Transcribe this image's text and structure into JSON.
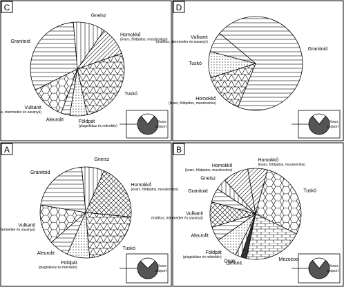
{
  "chart_data": [
    {
      "panel": "C",
      "type": "pie",
      "slices": [
        {
          "name": "Gneisz",
          "share": 0.11,
          "pattern": "vlines"
        },
        {
          "name": "Homokkő",
          "note": "(kvarc, földpátos, muszkovitos)",
          "share": 0.1,
          "pattern": "diag"
        },
        {
          "name": "Tuskó",
          "share": 0.27,
          "pattern": "triangles"
        },
        {
          "name": "Földpát",
          "note": "(plagioklász és mikroklin)",
          "share": 0.06,
          "pattern": "dots"
        },
        {
          "name": "Aleurolit",
          "share": 0.03,
          "pattern": "hlines"
        },
        {
          "name": "Vulkanit",
          "note": "(mafikus, intermedier és savanyú)",
          "share": 0.12,
          "pattern": "hex"
        },
        {
          "name": "Granitoid",
          "share": 0.31,
          "pattern": "hlines"
        }
      ],
      "inset": {
        "label": "Kvarc",
        "label2": "csoport",
        "share": 0.78
      }
    },
    {
      "panel": "D",
      "type": "pie",
      "slices": [
        {
          "name": "Granitoid",
          "share": 0.7,
          "pattern": "hlines"
        },
        {
          "name": "Homokkő",
          "note": "(kvarc, földpátos, muszkovitos)",
          "share": 0.14,
          "pattern": "triangles"
        },
        {
          "name": "Tuskó",
          "share": 0.09,
          "pattern": "dots"
        },
        {
          "name": "Vulkanit",
          "note": "(mafikus, intermedier és savanyú)",
          "share": 0.07,
          "pattern": "hlines"
        }
      ],
      "inset": {
        "label": "Kvarc",
        "label2": "csoport",
        "share": 0.78
      }
    },
    {
      "panel": "A",
      "type": "pie",
      "slices": [
        {
          "name": "Gneisz",
          "share": 0.08,
          "pattern": "vlines"
        },
        {
          "name": "Homokkő",
          "note": "(kvarc, földpátos, muszkovitos)",
          "share": 0.2,
          "pattern": "cross"
        },
        {
          "name": "Tuskó",
          "share": 0.22,
          "pattern": "triangles"
        },
        {
          "name": "Földpát",
          "note": "(plagioklász és mikroklin)",
          "share": 0.08,
          "pattern": "dots"
        },
        {
          "name": "Aleurolit",
          "share": 0.07,
          "pattern": "hlines"
        },
        {
          "name": "Vulkanit",
          "note": "(mafikus, intermedier és savanyú)",
          "share": 0.14,
          "pattern": "hex"
        },
        {
          "name": "Granitoid",
          "share": 0.21,
          "pattern": "hlines"
        }
      ],
      "inset": {
        "label": "Kvarc",
        "label2": "csoport",
        "share": 0.75
      }
    },
    {
      "panel": "B",
      "type": "pie",
      "slices": [
        {
          "name": "Homokkő",
          "note": "(kvarc, földpátos, muszkovitos)",
          "share": 0.07,
          "pattern": "diag"
        },
        {
          "name": "Tuskó",
          "share": 0.28,
          "pattern": "hex"
        },
        {
          "name": "Mezozoos mészkő",
          "share": 0.21,
          "pattern": "bricks"
        },
        {
          "name": "Limonit",
          "share": 0.02,
          "pattern": "solid"
        },
        {
          "name": "Opak",
          "share": 0.02,
          "pattern": "vlines"
        },
        {
          "name": "Földpát",
          "note": "(plagioklász és mikroklin)",
          "share": 0.08,
          "pattern": "dots"
        },
        {
          "name": "Aleurolit",
          "share": 0.05,
          "pattern": "hlines"
        },
        {
          "name": "Vulkanit",
          "note": "(mafikus, intermedier és savanyú)",
          "share": 0.09,
          "pattern": "cross"
        },
        {
          "name": "Granitoid",
          "share": 0.05,
          "pattern": "hlines"
        },
        {
          "name": "Gneisz",
          "share": 0.04,
          "pattern": "vlines"
        },
        {
          "name": "Homokkő",
          "note": "(kvarc, földpátos, muszkovitos)",
          "share": 0.09,
          "pattern": "diag"
        }
      ],
      "inset": {
        "label": "Kvarc",
        "label2": "csoport",
        "share": 0.78
      }
    }
  ],
  "panels": [
    {
      "letter": "C"
    },
    {
      "letter": "D"
    },
    {
      "letter": "A"
    },
    {
      "letter": "B"
    }
  ]
}
